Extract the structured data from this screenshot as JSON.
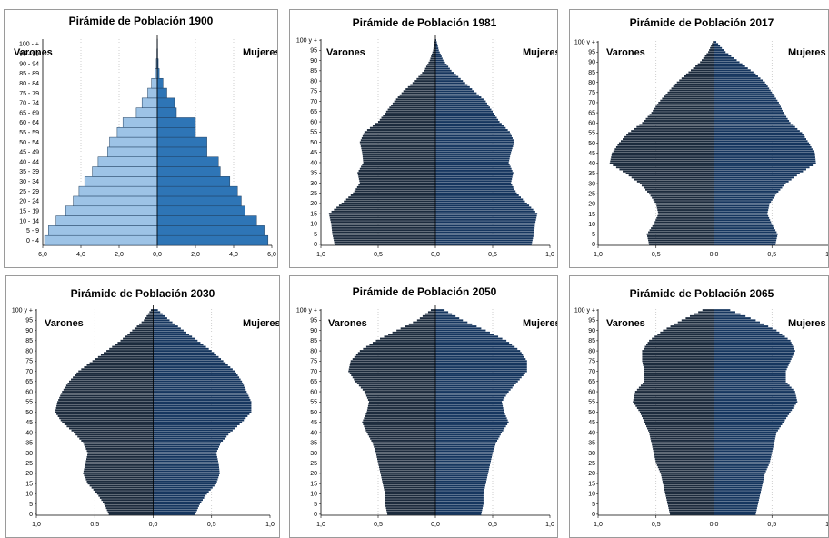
{
  "labels": {
    "men": "Varones",
    "women": "Mujeres"
  },
  "colors": {
    "men_1900": "#9dc3e6",
    "women_1900": "#2e75b6",
    "men": "#1c2b3d",
    "women": "#16365f"
  },
  "chart_data": [
    {
      "type": "bar",
      "title": "Pirámide de Población 1900",
      "age_labels": [
        "0 - 4",
        "5 - 9",
        "10 - 14",
        "15 - 19",
        "20 - 24",
        "25 - 29",
        "30 - 34",
        "35 - 39",
        "40 - 44",
        "45 - 49",
        "50 - 54",
        "55 - 59",
        "60 - 64",
        "65 - 69",
        "70 - 74",
        "75 - 79",
        "80 - 84",
        "85 - 89",
        "90 - 94",
        "95 - 99",
        "100 - +"
      ],
      "xticks": [
        "6,0",
        "4,0",
        "2,0",
        "0,0",
        "2,0",
        "4,0",
        "6,0"
      ],
      "xlim": [
        -6,
        6
      ],
      "series": [
        {
          "name": "Varones",
          "values": [
            5.9,
            5.7,
            5.3,
            4.8,
            4.4,
            4.1,
            3.8,
            3.4,
            3.1,
            2.6,
            2.5,
            2.1,
            1.8,
            1.1,
            0.8,
            0.5,
            0.3,
            0.1,
            0.05,
            0.02,
            0.01
          ]
        },
        {
          "name": "Mujeres",
          "values": [
            5.8,
            5.6,
            5.2,
            4.6,
            4.4,
            4.2,
            3.8,
            3.3,
            3.2,
            2.6,
            2.6,
            2.0,
            2.0,
            1.0,
            0.9,
            0.5,
            0.3,
            0.1,
            0.05,
            0.02,
            0.01
          ]
        }
      ]
    },
    {
      "type": "bar",
      "title": "Pirámide de Población 1981",
      "yticks": [
        "0",
        "5",
        "10",
        "15",
        "20",
        "25",
        "30",
        "35",
        "40",
        "45",
        "50",
        "55",
        "60",
        "65",
        "70",
        "75",
        "80",
        "85",
        "90",
        "95",
        "100 y +"
      ],
      "xticks": [
        "1,0",
        "0,5",
        "0,0",
        "0,5",
        "1,0"
      ],
      "xlim": [
        -1,
        1
      ],
      "ages": [
        0,
        5,
        10,
        15,
        20,
        25,
        30,
        35,
        40,
        45,
        50,
        55,
        60,
        65,
        70,
        75,
        80,
        85,
        90,
        95,
        100
      ],
      "series": [
        {
          "name": "Varones",
          "values": [
            0.88,
            0.9,
            0.91,
            0.93,
            0.82,
            0.72,
            0.66,
            0.68,
            0.63,
            0.64,
            0.66,
            0.62,
            0.5,
            0.43,
            0.36,
            0.28,
            0.18,
            0.1,
            0.05,
            0.02,
            0.005
          ]
        },
        {
          "name": "Mujeres",
          "values": [
            0.84,
            0.86,
            0.87,
            0.89,
            0.8,
            0.71,
            0.66,
            0.68,
            0.64,
            0.66,
            0.69,
            0.65,
            0.56,
            0.5,
            0.44,
            0.34,
            0.24,
            0.14,
            0.07,
            0.03,
            0.008
          ]
        }
      ]
    },
    {
      "type": "bar",
      "title": "Pirámide de Población 2017",
      "yticks": [
        "0",
        "5",
        "10",
        "15",
        "20",
        "25",
        "30",
        "35",
        "40",
        "45",
        "50",
        "55",
        "60",
        "65",
        "70",
        "75",
        "80",
        "85",
        "90",
        "95",
        "100 y +"
      ],
      "xticks": [
        "1,0",
        "0,5",
        "0,0",
        "0,5",
        "1,0"
      ],
      "xlim": [
        -1,
        1
      ],
      "ages": [
        0,
        5,
        10,
        15,
        20,
        25,
        30,
        35,
        40,
        45,
        50,
        55,
        60,
        65,
        70,
        75,
        80,
        85,
        90,
        95,
        100
      ],
      "series": [
        {
          "name": "Varones",
          "values": [
            0.56,
            0.58,
            0.52,
            0.48,
            0.5,
            0.56,
            0.64,
            0.76,
            0.9,
            0.88,
            0.82,
            0.74,
            0.62,
            0.54,
            0.48,
            0.4,
            0.32,
            0.22,
            0.12,
            0.05,
            0.01
          ]
        },
        {
          "name": "Mujeres",
          "values": [
            0.53,
            0.55,
            0.5,
            0.46,
            0.48,
            0.54,
            0.62,
            0.74,
            0.88,
            0.87,
            0.82,
            0.76,
            0.66,
            0.6,
            0.56,
            0.5,
            0.44,
            0.34,
            0.22,
            0.1,
            0.02
          ]
        }
      ]
    },
    {
      "type": "bar",
      "title": "Pirámide de Población 2030",
      "yticks": [
        "0",
        "5",
        "10",
        "15",
        "20",
        "25",
        "30",
        "35",
        "40",
        "45",
        "50",
        "55",
        "60",
        "65",
        "70",
        "75",
        "80",
        "85",
        "90",
        "95",
        "100 y +"
      ],
      "xticks": [
        "1,0",
        "0,5",
        "0,0",
        "0,5",
        "1,0"
      ],
      "xlim": [
        -1,
        1
      ],
      "ages": [
        0,
        5,
        10,
        15,
        20,
        25,
        30,
        35,
        40,
        45,
        50,
        55,
        60,
        65,
        70,
        75,
        80,
        85,
        90,
        95,
        100
      ],
      "series": [
        {
          "name": "Varones",
          "values": [
            0.38,
            0.42,
            0.48,
            0.56,
            0.6,
            0.58,
            0.56,
            0.6,
            0.68,
            0.78,
            0.84,
            0.82,
            0.78,
            0.72,
            0.64,
            0.52,
            0.4,
            0.28,
            0.18,
            0.08,
            0.02
          ]
        },
        {
          "name": "Mujeres",
          "values": [
            0.36,
            0.4,
            0.46,
            0.54,
            0.57,
            0.56,
            0.54,
            0.58,
            0.66,
            0.76,
            0.84,
            0.84,
            0.8,
            0.76,
            0.7,
            0.6,
            0.5,
            0.38,
            0.26,
            0.14,
            0.04
          ]
        }
      ]
    },
    {
      "type": "bar",
      "title": "Pirámide de Población 2050",
      "yticks": [
        "0",
        "5",
        "10",
        "15",
        "20",
        "25",
        "30",
        "35",
        "40",
        "45",
        "50",
        "55",
        "60",
        "65",
        "70",
        "75",
        "80",
        "85",
        "90",
        "95",
        "100 y +"
      ],
      "xticks": [
        "1,0",
        "0,5",
        "0,0",
        "0,5",
        "1,0"
      ],
      "xlim": [
        -1,
        1
      ],
      "ages": [
        0,
        5,
        10,
        15,
        20,
        25,
        30,
        35,
        40,
        45,
        50,
        55,
        60,
        65,
        70,
        75,
        80,
        85,
        90,
        95,
        100
      ],
      "series": [
        {
          "name": "Varones",
          "values": [
            0.42,
            0.44,
            0.44,
            0.46,
            0.48,
            0.5,
            0.52,
            0.55,
            0.6,
            0.64,
            0.6,
            0.58,
            0.62,
            0.7,
            0.76,
            0.74,
            0.66,
            0.52,
            0.34,
            0.16,
            0.04
          ]
        },
        {
          "name": "Mujeres",
          "values": [
            0.4,
            0.42,
            0.42,
            0.44,
            0.46,
            0.48,
            0.5,
            0.53,
            0.58,
            0.64,
            0.6,
            0.58,
            0.64,
            0.72,
            0.8,
            0.8,
            0.74,
            0.62,
            0.44,
            0.24,
            0.08
          ]
        }
      ]
    },
    {
      "type": "bar",
      "title": "Pirámide de Población 2065",
      "yticks": [
        "0",
        "5",
        "10",
        "15",
        "20",
        "25",
        "30",
        "35",
        "40",
        "45",
        "50",
        "55",
        "60",
        "65",
        "70",
        "75",
        "80",
        "85",
        "90",
        "95",
        "100 y +"
      ],
      "xticks": [
        "1,0",
        "0,5",
        "0,0",
        "0,5",
        "1,0"
      ],
      "xlim": [
        -1,
        1
      ],
      "ages": [
        0,
        5,
        10,
        15,
        20,
        25,
        30,
        35,
        40,
        45,
        50,
        55,
        60,
        65,
        70,
        75,
        80,
        85,
        90,
        95,
        100
      ],
      "series": [
        {
          "name": "Varones",
          "values": [
            0.38,
            0.4,
            0.42,
            0.44,
            0.46,
            0.5,
            0.52,
            0.54,
            0.56,
            0.6,
            0.64,
            0.7,
            0.68,
            0.6,
            0.6,
            0.62,
            0.62,
            0.56,
            0.44,
            0.28,
            0.1
          ]
        },
        {
          "name": "Mujeres",
          "values": [
            0.36,
            0.38,
            0.4,
            0.42,
            0.44,
            0.48,
            0.5,
            0.52,
            0.54,
            0.6,
            0.66,
            0.72,
            0.7,
            0.62,
            0.62,
            0.66,
            0.7,
            0.66,
            0.54,
            0.36,
            0.14
          ]
        }
      ]
    }
  ]
}
